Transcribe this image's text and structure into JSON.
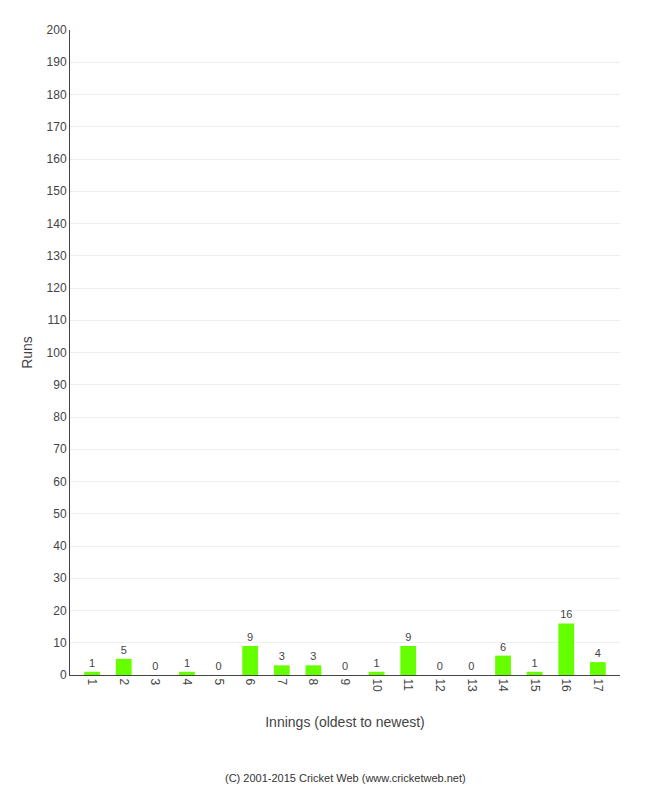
{
  "chart_data": {
    "type": "bar",
    "xlabel": "Innings (oldest to newest)",
    "ylabel": "Runs",
    "categories": [
      1,
      2,
      3,
      4,
      5,
      6,
      7,
      8,
      9,
      10,
      11,
      12,
      13,
      14,
      15,
      16,
      17
    ],
    "values": [
      1,
      5,
      0,
      1,
      0,
      9,
      3,
      3,
      0,
      1,
      9,
      0,
      0,
      6,
      1,
      16,
      4
    ],
    "color": "#66ff00",
    "ylim": [
      0,
      200
    ],
    "yticks": [
      0,
      10,
      20,
      30,
      40,
      50,
      60,
      70,
      80,
      90,
      100,
      110,
      120,
      130,
      140,
      150,
      160,
      170,
      180,
      190,
      200
    ],
    "grid": true,
    "data_labels": true,
    "annotations": [
      "(C) 2001-2015 Cricket Web (www.cricketweb.net)"
    ]
  }
}
